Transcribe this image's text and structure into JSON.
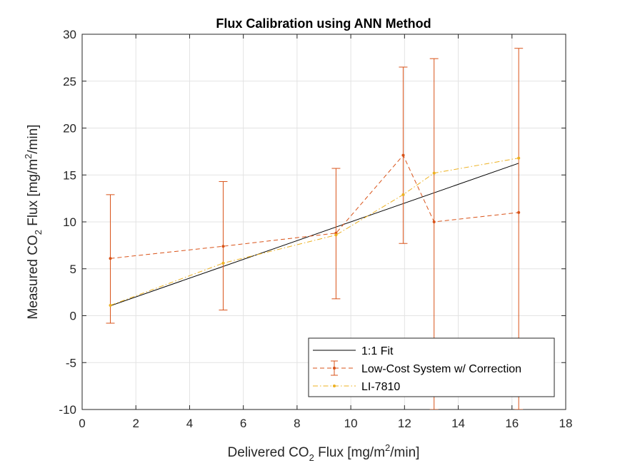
{
  "chart_data": {
    "type": "line",
    "title": "Flux Calibration using ANN Method",
    "xlabel": {
      "pre": "Delivered CO",
      "sub": "2",
      "mid": " Flux [mg/m",
      "sup": "2",
      "post": "/min]"
    },
    "ylabel": {
      "pre": "Measured CO",
      "sub": "2",
      "mid": " Flux [mg/m",
      "sup": "2",
      "post": "/min]"
    },
    "xlim": [
      0,
      18
    ],
    "ylim": [
      -10,
      30
    ],
    "xticks": [
      0,
      2,
      4,
      6,
      8,
      10,
      12,
      14,
      16,
      18
    ],
    "yticks": [
      -10,
      -5,
      0,
      5,
      10,
      15,
      20,
      25,
      30
    ],
    "grid": true,
    "legend_position": "bottom-right",
    "series": [
      {
        "name": "1:1 Fit",
        "color": "#000000",
        "style": "solid",
        "x": [
          1.05,
          16.25
        ],
        "y": [
          1.05,
          16.25
        ]
      },
      {
        "name": "Low-Cost System w/ Correction",
        "color": "#D95319",
        "style": "dashed",
        "marker": "dot",
        "errorbars": true,
        "x": [
          1.05,
          5.25,
          9.45,
          11.95,
          13.1,
          16.25
        ],
        "y": [
          6.1,
          7.4,
          8.8,
          17.1,
          10.0,
          11.0
        ],
        "err_low": [
          -0.8,
          0.6,
          1.8,
          7.7,
          -10,
          -10
        ],
        "err_high": [
          12.9,
          14.3,
          15.7,
          26.5,
          27.4,
          28.5
        ]
      },
      {
        "name": "LI-7810",
        "color": "#EDB120",
        "style": "dashdot",
        "marker": "dot",
        "x": [
          1.05,
          5.25,
          9.45,
          11.95,
          13.1,
          16.25
        ],
        "y": [
          1.1,
          5.6,
          8.6,
          12.9,
          15.2,
          16.8
        ]
      }
    ]
  }
}
